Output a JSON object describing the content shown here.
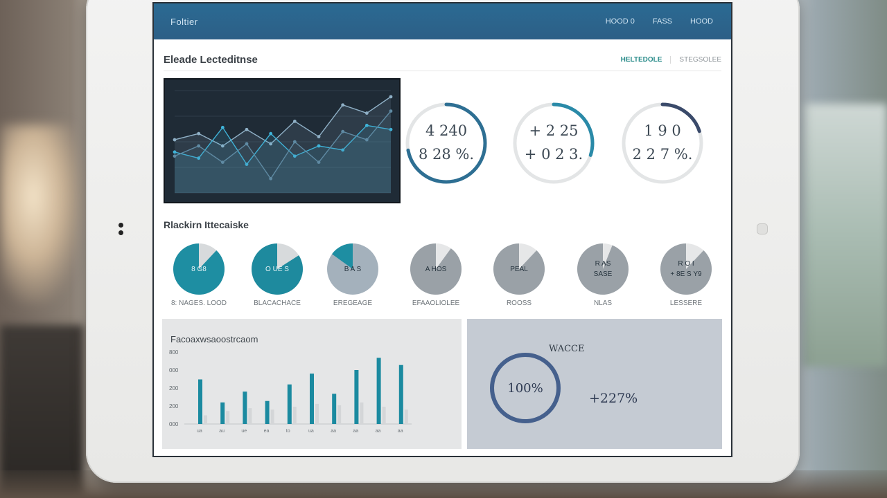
{
  "topbar": {
    "brand": "Foltier",
    "nav": [
      "HOOD 0",
      "FASS",
      "HOOD"
    ]
  },
  "header": {
    "title": "Eleade Lecteditnse",
    "tabs": [
      "HELTEDOLE",
      "STEGSOLEE"
    ]
  },
  "line_chart": {
    "type": "line",
    "series": [
      {
        "values": [
          0.52,
          0.58,
          0.46,
          0.62,
          0.48,
          0.7,
          0.55,
          0.86,
          0.78,
          0.94
        ]
      },
      {
        "values": [
          0.4,
          0.34,
          0.64,
          0.28,
          0.58,
          0.36,
          0.46,
          0.42,
          0.66,
          0.62
        ]
      },
      {
        "values": [
          0.36,
          0.46,
          0.3,
          0.48,
          0.14,
          0.5,
          0.3,
          0.6,
          0.52,
          0.8
        ]
      }
    ],
    "colors": [
      "#8fb0c6",
      "#3fb3d8",
      "#5f8aa3"
    ]
  },
  "rings": [
    {
      "line1": "4 240",
      "line2": "8 28 %.",
      "progress": 0.72,
      "color": "#2e6f93"
    },
    {
      "line1": "+ 2 25",
      "line2": "+ 0 2 3.",
      "progress": 0.3,
      "color": "#2a8aa8"
    },
    {
      "line1": "1 9 0",
      "line2": "2 2 7 %.",
      "progress": 0.2,
      "color": "#3a4a6a"
    }
  ],
  "breakdown": {
    "title": "Rlackirn Ittecaiske",
    "items": [
      {
        "line1": "8 G8",
        "line2": "",
        "label": "8: NAGES. LOOD",
        "fill": 0.88,
        "color": "#1e8ea2",
        "rest": "#d7dadc"
      },
      {
        "line1": "O UE S",
        "line2": "",
        "label": "BLACACHACE",
        "fill": 0.84,
        "color": "#1e8a9e",
        "rest": "#d7dadc"
      },
      {
        "line1": "B A S",
        "line2": "",
        "label": "EREGEAGE",
        "fill": 0.15,
        "color": "#1e8ea2",
        "rest": "#a4b1bc"
      },
      {
        "line1": "A HOS",
        "line2": "",
        "label": "EFAAOLIOLEE",
        "fill": 0.9,
        "color": "#9aa1a7",
        "rest": "#e6e7e8"
      },
      {
        "line1": "PEAL",
        "line2": "",
        "label": "ROOSS",
        "fill": 0.88,
        "color": "#9aa1a7",
        "rest": "#e6e7e8"
      },
      {
        "line1": "R AS",
        "line2": "SASE",
        "label": "NLAS",
        "fill": 0.94,
        "color": "#9aa1a7",
        "rest": "#e6e7e8"
      },
      {
        "line1": "R O I",
        "line2": "+ 8E S Y9",
        "label": "LESSERE",
        "fill": 0.88,
        "color": "#9aa1a7",
        "rest": "#e6e7e8"
      }
    ]
  },
  "chart_data": {
    "type": "bar",
    "title": "Facoaxwsaoostrcaom",
    "ylabels": [
      "800",
      "000",
      "200",
      "200",
      "000"
    ],
    "series": [
      {
        "values": [
          62,
          30,
          45,
          32,
          55,
          70,
          42,
          75,
          92,
          82
        ]
      },
      {
        "values": [
          12,
          18,
          22,
          20,
          24,
          28,
          26,
          30,
          24,
          20
        ]
      }
    ],
    "categories": [
      "ua",
      "au",
      "ue",
      "ea",
      "to",
      "ua",
      "aa",
      "aa",
      "aa",
      "aa"
    ],
    "colors": [
      "#1b8aa0",
      "#d4d6d8"
    ],
    "ylim": [
      0,
      100
    ]
  },
  "summary": {
    "title": "WACCE",
    "ring_text": "100%",
    "value": "+227%",
    "progress": 1.0,
    "color": "#45608d"
  }
}
